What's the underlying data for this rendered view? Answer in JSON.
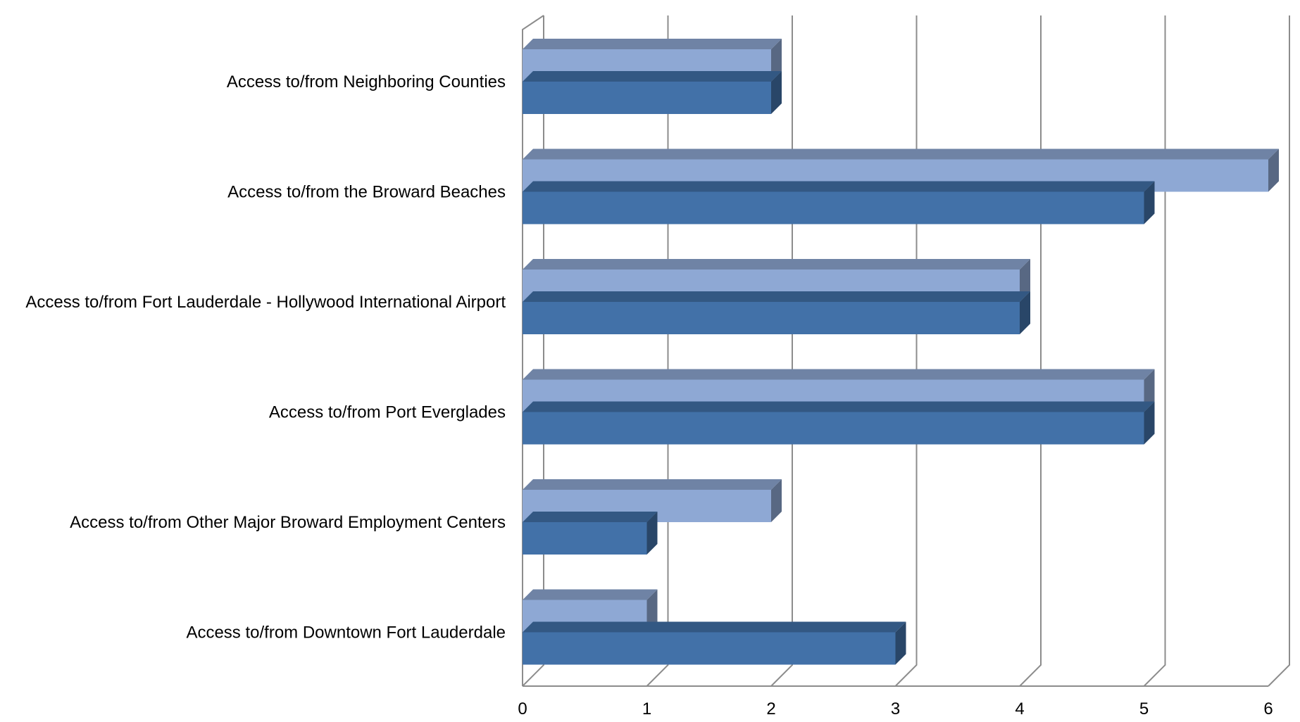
{
  "chart_data": {
    "type": "bar",
    "orientation": "horizontal",
    "style": "3d-clustered",
    "categories": [
      "Access to/from Neighboring Counties",
      "Access to/from the Broward Beaches",
      "Access to/from Fort Lauderdale - Hollywood International Airport",
      "Access to/from Port Everglades",
      "Access to/from Other Major Broward Employment Centers",
      "Access to/from Downtown Fort Lauderdale"
    ],
    "series": [
      {
        "values": [
          2,
          6,
          4,
          5,
          2,
          1
        ],
        "color": "#8EA8D4"
      },
      {
        "values": [
          2,
          5,
          4,
          5,
          1,
          3
        ],
        "color": "#4271A8"
      }
    ],
    "xlim": [
      0,
      6
    ],
    "xticks": [
      "0",
      "1",
      "2",
      "3",
      "4",
      "5",
      "6"
    ],
    "grid": true,
    "legend": "none",
    "title": "",
    "xlabel": "",
    "ylabel": ""
  }
}
